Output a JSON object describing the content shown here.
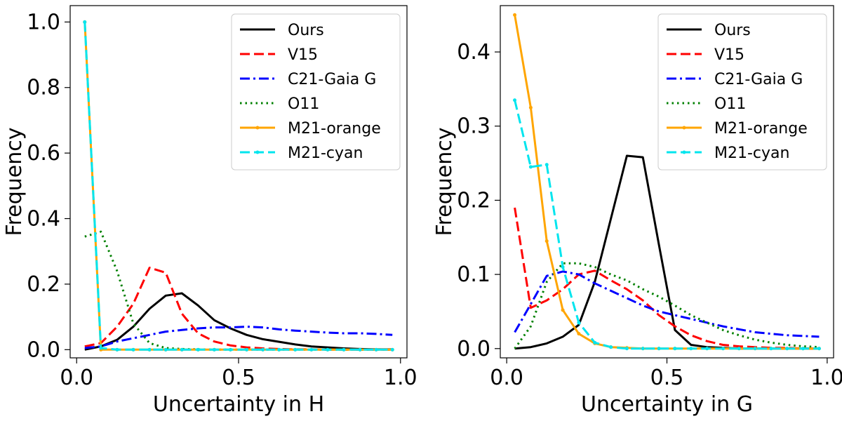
{
  "chart_data": [
    {
      "type": "line",
      "xlabel": "Uncertainty in H",
      "ylabel": "Frequency",
      "xlim": [
        -0.02,
        1.02
      ],
      "ylim": [
        -0.025,
        1.05
      ],
      "xticks": [
        0.0,
        0.5,
        1.0
      ],
      "xtick_labels": [
        "0.0",
        "0.5",
        "1.0"
      ],
      "yticks": [
        0.0,
        0.2,
        0.4,
        0.6,
        0.8,
        1.0
      ],
      "ytick_labels": [
        "0.0",
        "0.2",
        "0.4",
        "0.6",
        "0.8",
        "1.0"
      ],
      "legend_position": "top-right",
      "x": [
        0.025,
        0.075,
        0.125,
        0.175,
        0.225,
        0.275,
        0.325,
        0.375,
        0.425,
        0.475,
        0.525,
        0.575,
        0.625,
        0.675,
        0.725,
        0.775,
        0.825,
        0.875,
        0.925,
        0.975
      ],
      "series": [
        {
          "name": "Ours",
          "color": "#000000",
          "style": "solid",
          "marker": false,
          "values": [
            0.0,
            0.01,
            0.03,
            0.07,
            0.125,
            0.165,
            0.172,
            0.135,
            0.09,
            0.065,
            0.045,
            0.032,
            0.024,
            0.016,
            0.01,
            0.007,
            0.004,
            0.002,
            0.001,
            0.001
          ]
        },
        {
          "name": "V15",
          "color": "#ff0000",
          "style": "dashed",
          "marker": false,
          "values": [
            0.01,
            0.02,
            0.07,
            0.14,
            0.25,
            0.235,
            0.11,
            0.05,
            0.025,
            0.013,
            0.007,
            0.004,
            0.002,
            0.001,
            0.001,
            0.0,
            0.0,
            0.0,
            0.0,
            0.0
          ]
        },
        {
          "name": "C21-Gaia G",
          "color": "#0000ff",
          "style": "dashdot",
          "marker": false,
          "values": [
            0.005,
            0.01,
            0.025,
            0.035,
            0.045,
            0.055,
            0.06,
            0.065,
            0.068,
            0.068,
            0.07,
            0.068,
            0.062,
            0.058,
            0.055,
            0.052,
            0.05,
            0.05,
            0.048,
            0.045
          ]
        },
        {
          "name": "O11",
          "color": "#008000",
          "style": "dotted",
          "marker": false,
          "values": [
            0.345,
            0.36,
            0.24,
            0.08,
            0.02,
            0.005,
            0.002,
            0.001,
            0.0,
            0.0,
            0.0,
            0.0,
            0.0,
            0.0,
            0.0,
            0.0,
            0.0,
            0.0,
            0.0,
            0.0
          ]
        },
        {
          "name": "M21-orange",
          "color": "#ffa500",
          "style": "solid",
          "marker": true,
          "values": [
            1.0,
            0.0,
            0.0,
            0.0,
            0.0,
            0.0,
            0.0,
            0.0,
            0.0,
            0.0,
            0.0,
            0.0,
            0.0,
            0.0,
            0.0,
            0.0,
            0.0,
            0.0,
            0.0,
            0.0
          ]
        },
        {
          "name": "M21-cyan",
          "color": "#00e5ee",
          "style": "dashed",
          "marker": true,
          "values": [
            1.0,
            0.005,
            0.0,
            0.0,
            0.0,
            0.0,
            0.0,
            0.0,
            0.0,
            0.0,
            0.0,
            0.0,
            0.0,
            0.0,
            0.0,
            0.0,
            0.0,
            0.0,
            0.0,
            0.0
          ]
        }
      ]
    },
    {
      "type": "line",
      "xlabel": "Uncertainty in G",
      "ylabel": "Frequency",
      "xlim": [
        -0.02,
        1.02
      ],
      "ylim": [
        -0.0125,
        0.4625
      ],
      "xticks": [
        0.0,
        0.5,
        1.0
      ],
      "xtick_labels": [
        "0.0",
        "0.5",
        "1.0"
      ],
      "yticks": [
        0.0,
        0.1,
        0.2,
        0.3,
        0.4
      ],
      "ytick_labels": [
        "0.0",
        "0.1",
        "0.2",
        "0.3",
        "0.4"
      ],
      "legend_position": "top-right",
      "x": [
        0.025,
        0.075,
        0.125,
        0.175,
        0.225,
        0.275,
        0.325,
        0.375,
        0.425,
        0.475,
        0.525,
        0.575,
        0.625,
        0.675,
        0.725,
        0.775,
        0.825,
        0.875,
        0.925,
        0.975
      ],
      "series": [
        {
          "name": "Ours",
          "color": "#000000",
          "style": "solid",
          "marker": false,
          "values": [
            0.0,
            0.002,
            0.007,
            0.016,
            0.032,
            0.09,
            0.175,
            0.26,
            0.258,
            0.14,
            0.025,
            0.005,
            0.002,
            0.001,
            0.0,
            0.0,
            0.0,
            0.0,
            0.0,
            0.0
          ]
        },
        {
          "name": "V15",
          "color": "#ff0000",
          "style": "dashed",
          "marker": false,
          "values": [
            0.19,
            0.055,
            0.065,
            0.08,
            0.1,
            0.105,
            0.092,
            0.08,
            0.065,
            0.045,
            0.03,
            0.018,
            0.01,
            0.005,
            0.003,
            0.002,
            0.001,
            0.001,
            0.0,
            0.0
          ]
        },
        {
          "name": "C21-Gaia G",
          "color": "#0000ff",
          "style": "dashdot",
          "marker": false,
          "values": [
            0.022,
            0.06,
            0.098,
            0.104,
            0.1,
            0.088,
            0.078,
            0.068,
            0.058,
            0.05,
            0.045,
            0.04,
            0.035,
            0.03,
            0.026,
            0.022,
            0.02,
            0.018,
            0.017,
            0.016
          ]
        },
        {
          "name": "O11",
          "color": "#008000",
          "style": "dotted",
          "marker": false,
          "values": [
            0.0,
            0.03,
            0.09,
            0.115,
            0.115,
            0.11,
            0.1,
            0.092,
            0.08,
            0.07,
            0.058,
            0.045,
            0.035,
            0.025,
            0.018,
            0.012,
            0.008,
            0.005,
            0.003,
            0.002
          ]
        },
        {
          "name": "M21-orange",
          "color": "#ffa500",
          "style": "solid",
          "marker": true,
          "values": [
            0.45,
            0.325,
            0.145,
            0.052,
            0.02,
            0.007,
            0.002,
            0.001,
            0.0,
            0.0,
            0.0,
            0.0,
            0.0,
            0.0,
            0.0,
            0.0,
            0.0,
            0.0,
            0.0,
            0.0
          ]
        },
        {
          "name": "M21-cyan",
          "color": "#00e5ee",
          "style": "dashed",
          "marker": true,
          "values": [
            0.335,
            0.245,
            0.248,
            0.11,
            0.035,
            0.008,
            0.002,
            0.0,
            0.0,
            0.0,
            0.0,
            0.0,
            0.0,
            0.0,
            0.0,
            0.0,
            0.0,
            0.0,
            0.0,
            0.0
          ]
        }
      ]
    }
  ]
}
